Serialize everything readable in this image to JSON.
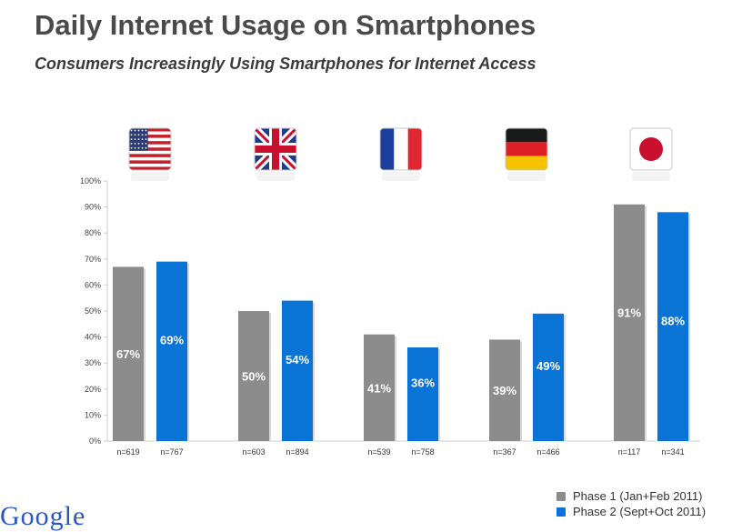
{
  "header": {
    "title": "Daily Internet Usage on Smartphones",
    "subtitle": "Consumers Increasingly Using Smartphones for Internet Access"
  },
  "chart_data": {
    "type": "bar",
    "title": "Daily Internet Usage on Smartphones",
    "subtitle": "Consumers Increasingly Using Smartphones for Internet Access",
    "categories": [
      "United States",
      "United Kingdom",
      "France",
      "Germany",
      "Japan"
    ],
    "category_flags": [
      "us-flag-icon",
      "uk-flag-icon",
      "france-flag-icon",
      "germany-flag-icon",
      "japan-flag-icon"
    ],
    "ylim": [
      0,
      100
    ],
    "yticks": [
      "0%",
      "10%",
      "20%",
      "30%",
      "40%",
      "50%",
      "60%",
      "70%",
      "80%",
      "90%",
      "100%"
    ],
    "grid": false,
    "legend_position": "bottom-right",
    "series": [
      {
        "name": "Phase 1 (Jan+Feb 2011)",
        "color": "#8c8c8c",
        "values": [
          67,
          50,
          41,
          39,
          91
        ],
        "labels": [
          "67%",
          "50%",
          "41%",
          "39%",
          "91%"
        ],
        "sample_sizes": [
          "n=619",
          "n=603",
          "n=539",
          "n=367",
          "n=117"
        ]
      },
      {
        "name": "Phase 2 (Sept+Oct 2011)",
        "color": "#0a74d6",
        "values": [
          69,
          54,
          36,
          49,
          88
        ],
        "labels": [
          "69%",
          "54%",
          "36%",
          "49%",
          "88%"
        ],
        "sample_sizes": [
          "n=767",
          "n=894",
          "n=758",
          "n=466",
          "n=341"
        ]
      }
    ]
  },
  "footer": {
    "logo_text": "Google"
  }
}
